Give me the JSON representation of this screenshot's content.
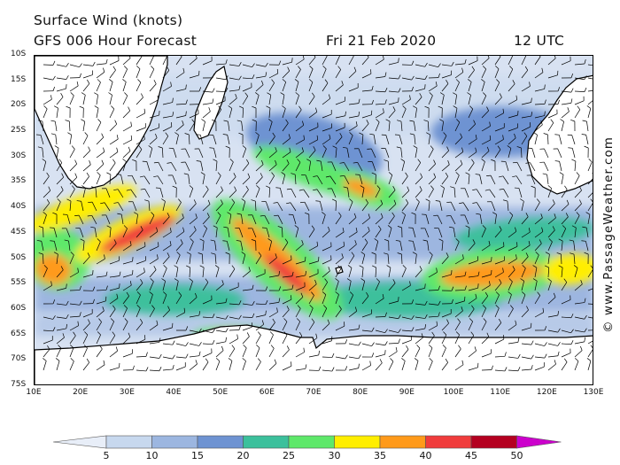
{
  "header": {
    "title_line1": "Surface Wind (knots)",
    "title_line2": "GFS 006 Hour Forecast",
    "date": "Fri 21 Feb 2020",
    "time": "12 UTC"
  },
  "map": {
    "lat_labels": [
      "10S",
      "15S",
      "20S",
      "25S",
      "30S",
      "35S",
      "40S",
      "45S",
      "50S",
      "55S",
      "60S",
      "65S",
      "70S",
      "75S"
    ],
    "lon_labels": [
      "10E",
      "20E",
      "30E",
      "40E",
      "50E",
      "60E",
      "70E",
      "80E",
      "90E",
      "100E",
      "110E",
      "120E",
      "130E"
    ],
    "lat_range": [
      -10,
      -75
    ],
    "lon_range": [
      10,
      130
    ],
    "land_color": "#ffffff",
    "coastline_color": "#000000",
    "wind_barb_color": "#000000",
    "wind_streaks": [
      {
        "lon": 32,
        "lat": -45,
        "speed": 40,
        "orient": -25,
        "len": 18,
        "wid": 3.5
      },
      {
        "lon": 20,
        "lat": -40,
        "speed": 30,
        "orient": -20,
        "len": 25,
        "wid": 5
      },
      {
        "lon": 30,
        "lat": -45,
        "speed": 30,
        "orient": -25,
        "len": 25,
        "wid": 6
      },
      {
        "lon": 62,
        "lat": -50,
        "speed": 35,
        "orient": 42,
        "len": 26,
        "wid": 5
      },
      {
        "lon": 64,
        "lat": -53,
        "speed": 40,
        "orient": 42,
        "len": 12,
        "wid": 3
      },
      {
        "lon": 62,
        "lat": -50,
        "speed": 25,
        "orient": 42,
        "len": 36,
        "wid": 11
      },
      {
        "lon": 70,
        "lat": -33,
        "speed": 25,
        "orient": 20,
        "len": 28,
        "wid": 6
      },
      {
        "lon": 80,
        "lat": -36,
        "speed": 35,
        "orient": 20,
        "len": 8,
        "wid": 3
      },
      {
        "lon": 80,
        "lat": -36,
        "speed": 25,
        "orient": 20,
        "len": 18,
        "wid": 6
      },
      {
        "lon": 108,
        "lat": -53,
        "speed": 35,
        "orient": -5,
        "len": 22,
        "wid": 5
      },
      {
        "lon": 108,
        "lat": -53,
        "speed": 25,
        "orient": -5,
        "len": 30,
        "wid": 10
      },
      {
        "lon": 125,
        "lat": -52,
        "speed": 30,
        "orient": -5,
        "len": 12,
        "wid": 6
      },
      {
        "lon": 14,
        "lat": -52,
        "speed": 35,
        "orient": 10,
        "len": 8,
        "wid": 6
      },
      {
        "lon": 15,
        "lat": -50,
        "speed": 25,
        "orient": 10,
        "len": 14,
        "wid": 12
      },
      {
        "lon": 52,
        "lat": -65,
        "speed": 40,
        "orient": 0,
        "len": 8,
        "wid": 1.5
      },
      {
        "lon": 52,
        "lat": -65,
        "speed": 25,
        "orient": 0,
        "len": 16,
        "wid": 3
      },
      {
        "lon": 90,
        "lat": -58,
        "speed": 20,
        "orient": 0,
        "len": 40,
        "wid": 7
      },
      {
        "lon": 40,
        "lat": -58,
        "speed": 20,
        "orient": 0,
        "len": 30,
        "wid": 6
      },
      {
        "lon": 115,
        "lat": -45,
        "speed": 20,
        "orient": -5,
        "len": 30,
        "wid": 6
      },
      {
        "lon": 70,
        "lat": -28,
        "speed": 15,
        "orient": 15,
        "len": 30,
        "wid": 12
      },
      {
        "lon": 110,
        "lat": -25,
        "speed": 15,
        "orient": 0,
        "len": 30,
        "wid": 10
      }
    ]
  },
  "legend": {
    "labels": [
      "5",
      "10",
      "15",
      "20",
      "25",
      "30",
      "35",
      "40",
      "45",
      "50"
    ],
    "colors": [
      "#e8eef8",
      "#c7d8ee",
      "#9cb6e0",
      "#6e93d2",
      "#3cc09c",
      "#5ee86a",
      "#ffee00",
      "#ff9a1a",
      "#f03c3c",
      "#b40020",
      "#cc00cc"
    ]
  },
  "watermark": "© www.PassageWeather.com"
}
